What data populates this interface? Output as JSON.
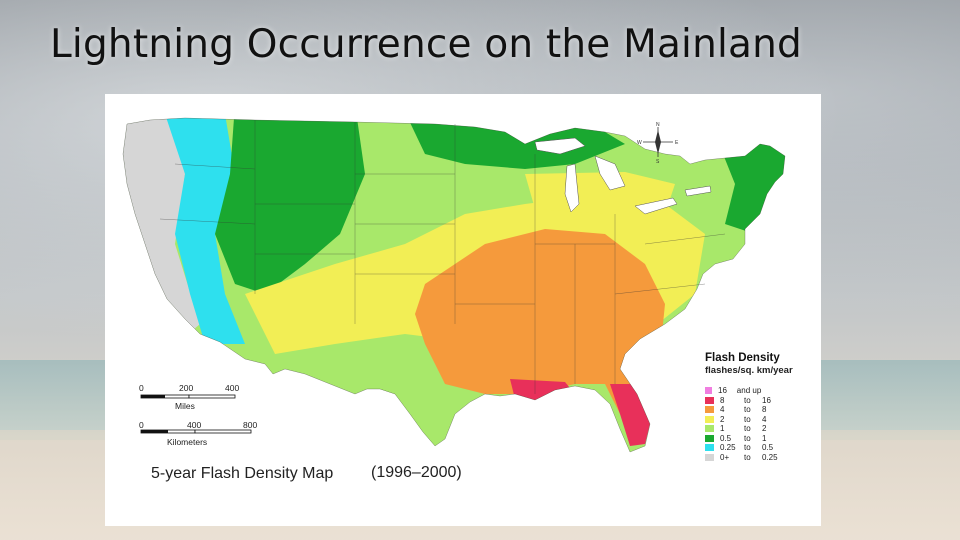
{
  "slide": {
    "title": "Lightning Occurrence on the Mainland"
  },
  "map": {
    "caption": "5-year Flash Density Map",
    "years": "(1996–2000)",
    "compass": {
      "n": "N",
      "s": "S",
      "e": "E",
      "w": "W"
    },
    "scale_miles": {
      "ticks": [
        "0",
        "200",
        "400"
      ],
      "unit": "Miles"
    },
    "scale_km": {
      "ticks": [
        "0",
        "400",
        "800"
      ],
      "unit": "Kilometers"
    },
    "legend": {
      "title": "Flash Density",
      "subtitle": "flashes/sq. km/year",
      "entries": [
        {
          "low": "16",
          "to": "and up",
          "high": "",
          "color": "#f07ee0"
        },
        {
          "low": "8",
          "to": "to",
          "high": "16",
          "color": "#e8305a"
        },
        {
          "low": "4",
          "to": "to",
          "high": "8",
          "color": "#f59a3c"
        },
        {
          "low": "2",
          "to": "to",
          "high": "4",
          "color": "#f2ee55"
        },
        {
          "low": "1",
          "to": "to",
          "high": "2",
          "color": "#a8e86a"
        },
        {
          "low": "0.5",
          "to": "to",
          "high": "1",
          "color": "#1aa830"
        },
        {
          "low": "0.25",
          "to": "to",
          "high": "0.5",
          "color": "#2ee0ee"
        },
        {
          "low": "0+",
          "to": "to",
          "high": "0.25",
          "color": "#d6d6d6"
        }
      ]
    }
  }
}
